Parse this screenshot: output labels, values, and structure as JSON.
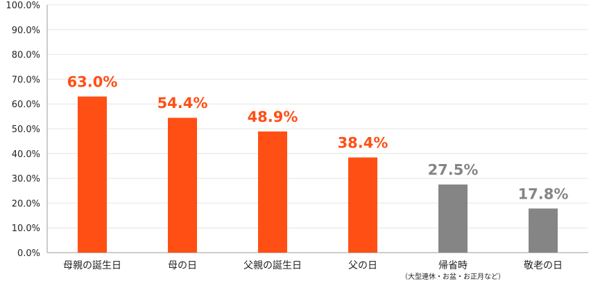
{
  "chart_data": {
    "type": "bar",
    "categories": [
      "母親の誕生日",
      "母の日",
      "父親の誕生日",
      "父の日",
      "帰省時",
      "敬老の日"
    ],
    "category_notes": [
      "",
      "",
      "",
      "",
      "（大型連休・お盆・お正月など）",
      ""
    ],
    "values": [
      63.0,
      54.4,
      48.9,
      38.4,
      27.5,
      17.8
    ],
    "data_labels": [
      "63.0%",
      "54.4%",
      "48.9%",
      "38.4%",
      "27.5%",
      "17.8%"
    ],
    "ylim": [
      0,
      100
    ],
    "yticks": [
      0,
      10,
      20,
      30,
      40,
      50,
      60,
      70,
      80,
      90,
      100
    ],
    "ytick_labels": [
      "0.0%",
      "10.0%",
      "20.0%",
      "30.0%",
      "40.0%",
      "50.0%",
      "60.0%",
      "70.0%",
      "80.0%",
      "90.0%",
      "100.0%"
    ],
    "grid": true,
    "colors": {
      "highlight": "#ff4f14",
      "muted": "#858585",
      "grid": "#e4e4e4",
      "axis": "#999999"
    },
    "bar_color_groups": [
      "highlight",
      "highlight",
      "highlight",
      "highlight",
      "muted",
      "muted"
    ]
  }
}
